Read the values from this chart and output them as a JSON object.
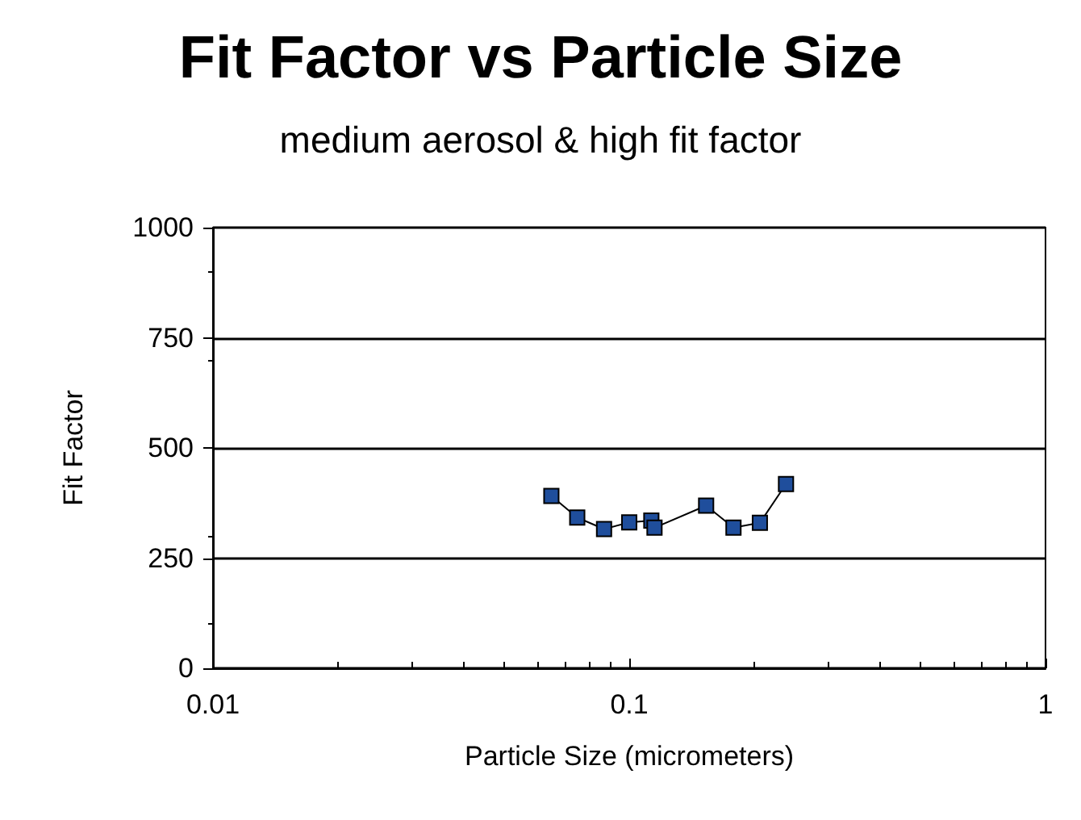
{
  "chart_data": {
    "type": "line",
    "title": "Fit Factor vs Particle Size",
    "subtitle": "medium aerosol & high fit factor",
    "xlabel": "Particle Size (micrometers)",
    "ylabel": "Fit Factor",
    "x": [
      0.065,
      0.075,
      0.087,
      0.1,
      0.113,
      0.115,
      0.153,
      0.178,
      0.206,
      0.238
    ],
    "series": [
      {
        "color": "#1f4e9c",
        "values": [
          391,
          342,
          316,
          331,
          335,
          319,
          369,
          319,
          330,
          418
        ]
      }
    ],
    "log": "x",
    "xlim": [
      0.01,
      1
    ],
    "xticks": [
      0.01,
      0.1,
      1
    ],
    "ylim": [
      0,
      1000
    ],
    "yticks": [
      0,
      250,
      500,
      750,
      1000
    ],
    "grid": "y",
    "marker": "square",
    "line_style": "solid"
  }
}
